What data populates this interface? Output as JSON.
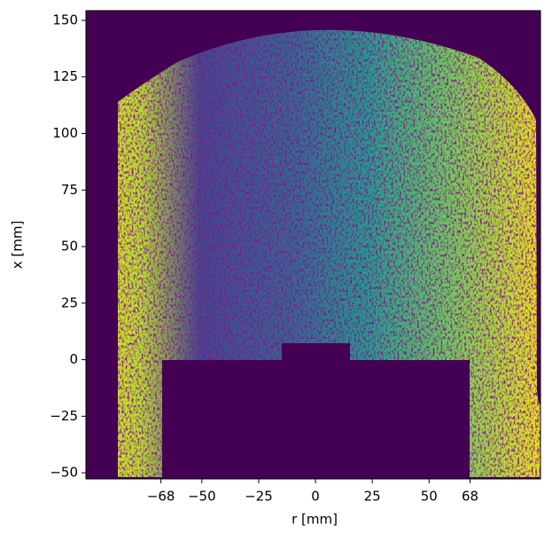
{
  "chart_data": {
    "type": "heatmap",
    "xlabel": "r [mm]",
    "ylabel": "x [mm]",
    "xlim": [
      -101,
      99
    ],
    "ylim": [
      -52.7,
      154.3
    ],
    "xticks": [
      {
        "value": -68,
        "label": "−68"
      },
      {
        "value": -50,
        "label": "−50"
      },
      {
        "value": -25,
        "label": "−25"
      },
      0,
      25,
      50,
      68
    ],
    "yticks": [
      {
        "value": -50,
        "label": "−50"
      },
      {
        "value": -25,
        "label": "−25"
      },
      0,
      25,
      50,
      75,
      100,
      125,
      150
    ]
  }
}
